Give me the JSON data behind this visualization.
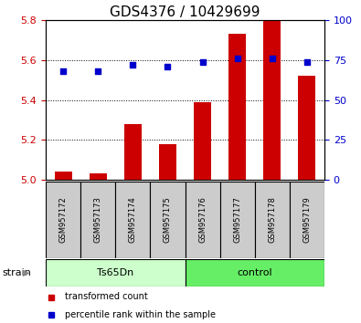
{
  "title": "GDS4376 / 10429699",
  "samples": [
    "GSM957172",
    "GSM957173",
    "GSM957174",
    "GSM957175",
    "GSM957176",
    "GSM957177",
    "GSM957178",
    "GSM957179"
  ],
  "groups": [
    "Ts65Dn",
    "Ts65Dn",
    "Ts65Dn",
    "Ts65Dn",
    "control",
    "control",
    "control",
    "control"
  ],
  "bar_values": [
    5.04,
    5.03,
    5.28,
    5.18,
    5.39,
    5.73,
    5.8,
    5.52
  ],
  "dot_values": [
    68,
    68,
    72,
    71,
    74,
    76,
    76,
    74
  ],
  "bar_bottom": 5.0,
  "ylim_left": [
    5.0,
    5.8
  ],
  "ylim_right": [
    0,
    100
  ],
  "yticks_left": [
    5.0,
    5.2,
    5.4,
    5.6,
    5.8
  ],
  "yticks_right": [
    0,
    25,
    50,
    75,
    100
  ],
  "bar_color": "#cc0000",
  "dot_color": "#0000cc",
  "group_colors": {
    "Ts65Dn": "#ccffcc",
    "control": "#66ee66"
  },
  "group_label": "strain",
  "left_tick_color": "#cc0000",
  "right_tick_color": "#0000cc",
  "title_fontsize": 11,
  "legend_items": [
    "transformed count",
    "percentile rank within the sample"
  ],
  "hgrid_values": [
    5.2,
    5.4,
    5.6
  ],
  "bar_width": 0.5,
  "sample_box_color": "#cccccc"
}
